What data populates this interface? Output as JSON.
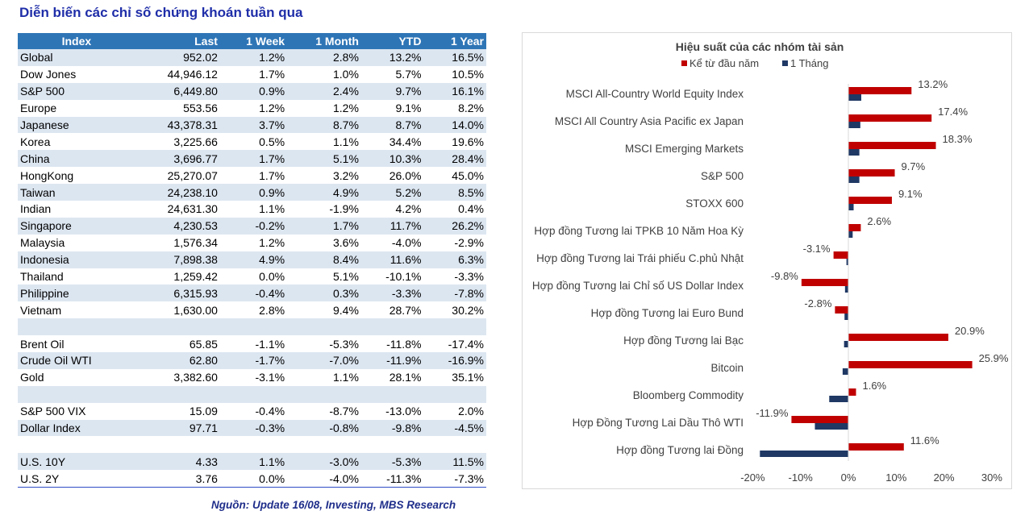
{
  "page": {
    "title": "Diễn biến các chỉ số chứng khoán tuần qua",
    "source": "Nguồn: Update 16/08, Investing, MBS Research"
  },
  "table": {
    "headers": [
      "Index",
      "Last",
      "1 Week",
      "1 Month",
      "YTD",
      "1 Year"
    ],
    "rows": [
      [
        "Global",
        "952.02",
        "1.2%",
        "2.8%",
        "13.2%",
        "16.5%"
      ],
      [
        "Dow Jones",
        "44,946.12",
        "1.7%",
        "1.0%",
        "5.7%",
        "10.5%"
      ],
      [
        "S&P 500",
        "6,449.80",
        "0.9%",
        "2.4%",
        "9.7%",
        "16.1%"
      ],
      [
        "Europe",
        "553.56",
        "1.2%",
        "1.2%",
        "9.1%",
        "8.2%"
      ],
      [
        "Japanese",
        "43,378.31",
        "3.7%",
        "8.7%",
        "8.7%",
        "14.0%"
      ],
      [
        "Korea",
        "3,225.66",
        "0.5%",
        "1.1%",
        "34.4%",
        "19.6%"
      ],
      [
        "China",
        "3,696.77",
        "1.7%",
        "5.1%",
        "10.3%",
        "28.4%"
      ],
      [
        "HongKong",
        "25,270.07",
        "1.7%",
        "3.2%",
        "26.0%",
        "45.0%"
      ],
      [
        "Taiwan",
        "24,238.10",
        "0.9%",
        "4.9%",
        "5.2%",
        "8.5%"
      ],
      [
        "Indian",
        "24,631.30",
        "1.1%",
        "-1.9%",
        "4.2%",
        "0.4%"
      ],
      [
        "Singapore",
        "4,230.53",
        "-0.2%",
        "1.7%",
        "11.7%",
        "26.2%"
      ],
      [
        "Malaysia",
        "1,576.34",
        "1.2%",
        "3.6%",
        "-4.0%",
        "-2.9%"
      ],
      [
        "Indonesia",
        "7,898.38",
        "4.9%",
        "8.4%",
        "11.6%",
        "6.3%"
      ],
      [
        "Thailand",
        "1,259.42",
        "0.0%",
        "5.1%",
        "-10.1%",
        "-3.3%"
      ],
      [
        "Philippine",
        "6,315.93",
        "-0.4%",
        "0.3%",
        "-3.3%",
        "-7.8%"
      ],
      [
        "Vietnam",
        "1,630.00",
        "2.8%",
        "9.4%",
        "28.7%",
        "30.2%"
      ],
      [
        "",
        "",
        "",
        "",
        "",
        ""
      ],
      [
        "Brent Oil",
        "65.85",
        "-1.1%",
        "-5.3%",
        "-11.8%",
        "-17.4%"
      ],
      [
        "Crude Oil WTI",
        "62.80",
        "-1.7%",
        "-7.0%",
        "-11.9%",
        "-16.9%"
      ],
      [
        "Gold",
        "3,382.60",
        "-3.1%",
        "1.1%",
        "28.1%",
        "35.1%"
      ],
      [
        "",
        "",
        "",
        "",
        "",
        ""
      ],
      [
        "S&P 500 VIX",
        "15.09",
        "-0.4%",
        "-8.7%",
        "-13.0%",
        "2.0%"
      ],
      [
        "Dollar Index",
        "97.71",
        "-0.3%",
        "-0.8%",
        "-9.8%",
        "-4.5%"
      ],
      [
        "",
        "",
        "",
        "",
        "",
        ""
      ],
      [
        "U.S. 10Y",
        "4.33",
        "1.1%",
        "-3.0%",
        "-5.3%",
        "11.5%"
      ],
      [
        "U.S. 2Y",
        "3.76",
        "0.0%",
        "-4.0%",
        "-11.3%",
        "-7.3%"
      ]
    ]
  },
  "chart_data": {
    "type": "bar",
    "orientation": "horizontal",
    "title": "Hiệu suất của các nhóm tài sản",
    "categories": [
      "MSCI All-Country World Equity Index",
      "MSCI All Country Asia Pacific ex Japan",
      "MSCI Emerging Markets",
      "S&P 500",
      "STOXX 600",
      "Hợp đồng Tương lai TPKB 10 Năm Hoa Kỳ",
      "Hợp đồng Tương lai Trái phiếu C.phủ Nhật",
      "Hợp đồng Tương lai Chỉ số US Dollar Index",
      "Hợp đồng Tương lai Euro Bund",
      "Hợp đồng Tương lai Bạc",
      "Bitcoin",
      "Bloomberg Commodity",
      "Hợp Đồng Tương Lai Dầu Thô WTI",
      "Hợp đồng Tương lai Đồng"
    ],
    "series": [
      {
        "name": "Kể từ đầu năm",
        "color": "#c00000",
        "values": [
          13.2,
          17.4,
          18.3,
          9.7,
          9.1,
          2.6,
          -3.1,
          -9.8,
          -2.8,
          20.9,
          25.9,
          1.6,
          -11.9,
          11.6
        ],
        "labels": [
          "13.2%",
          "17.4%",
          "18.3%",
          "9.7%",
          "9.1%",
          "2.6%",
          "-3.1%",
          "-9.8%",
          "-2.8%",
          "20.9%",
          "25.9%",
          "1.6%",
          "-11.9%",
          "11.6%"
        ]
      },
      {
        "name": "1 Tháng",
        "color": "#1f3864",
        "values": [
          2.7,
          2.5,
          2.3,
          2.3,
          1.1,
          0.9,
          -0.4,
          -0.7,
          -0.8,
          -0.9,
          -1.2,
          -4.0,
          -7.0,
          -18.5
        ]
      }
    ],
    "xlim": [
      -20,
      30
    ],
    "xticks": [
      "-20%",
      "-10%",
      "0%",
      "10%",
      "20%",
      "30%"
    ],
    "legend": "top"
  }
}
